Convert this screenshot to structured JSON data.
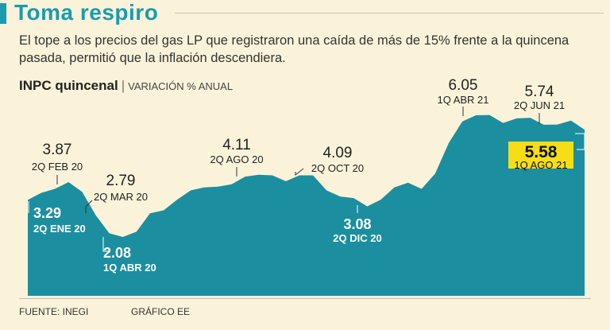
{
  "header": {
    "title": "Toma respiro",
    "subtitle": "El tope a los precios del gas LP que registraron una caída de más de 15% frente a la quincena pasada, permitió que la inflación descendiera.",
    "chart_title": "INPC quincenal",
    "separator": "|",
    "chart_unit": "VARIACIÓN % ANUAL"
  },
  "footer": {
    "source": "FUENTE: INEGI",
    "credit": "GRÁFICO EE"
  },
  "colors": {
    "area": "#1b8fa0",
    "title": "#1a9bb0",
    "highlight": "#f5de16",
    "background": "#fbf3d9"
  },
  "chart_data": {
    "type": "area",
    "title": "INPC quincenal",
    "ylabel": "VARIACIÓN % ANUAL",
    "ylim": [
      0,
      7
    ],
    "grid": false,
    "values": [
      3.29,
      3.52,
      3.65,
      3.87,
      3.55,
      2.79,
      2.2,
      2.08,
      2.25,
      2.85,
      2.95,
      3.3,
      3.6,
      3.7,
      3.72,
      3.8,
      4.05,
      4.11,
      4.09,
      3.9,
      4.09,
      4.09,
      3.6,
      3.4,
      3.35,
      3.08,
      3.3,
      3.7,
      3.85,
      3.65,
      4.15,
      5.15,
      5.85,
      6.05,
      6.06,
      5.8,
      5.95,
      5.97,
      5.74,
      5.75,
      5.88,
      5.58
    ],
    "annotations": [
      {
        "index": 0,
        "value": "3.29",
        "date": "2Q ENE 20",
        "style": "inside"
      },
      {
        "index": 3,
        "value": "3.87",
        "date": "2Q FEB 20",
        "style": "outside"
      },
      {
        "index": 5,
        "value": "2.79",
        "date": "2Q MAR 20",
        "style": "outside"
      },
      {
        "index": 7,
        "value": "2.08",
        "date": "1Q ABR 20",
        "style": "inside"
      },
      {
        "index": 17,
        "value": "4.11",
        "date": "2Q AGO 20",
        "style": "outside"
      },
      {
        "index": 21,
        "value": "4.09",
        "date": "2Q OCT 20",
        "style": "outside"
      },
      {
        "index": 25,
        "value": "3.08",
        "date": "2Q DIC 20",
        "style": "inside"
      },
      {
        "index": 33,
        "value": "6.05",
        "date": "1Q ABR 21",
        "style": "outside"
      },
      {
        "index": 38,
        "value": "5.74",
        "date": "2Q JUN 21",
        "style": "outside"
      },
      {
        "index": 41,
        "value": "5.58",
        "date": "1Q AGO 21",
        "style": "highlight"
      }
    ]
  }
}
